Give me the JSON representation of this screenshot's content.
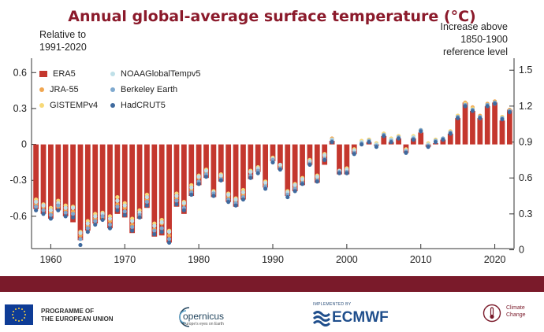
{
  "header": {
    "title": "Annual global-average surface temperature (°C)",
    "left_axis_label_line1": "Relative to",
    "left_axis_label_line2": "1991-2020",
    "right_axis_label_line1": "Increase above",
    "right_axis_label_line2": "1850-1900",
    "right_axis_label_line3": "reference level"
  },
  "legend": [
    {
      "label": "ERA5",
      "kind": "bar",
      "color": "#c4372e"
    },
    {
      "label": "JRA-55",
      "kind": "dot",
      "color": "#f0a650"
    },
    {
      "label": "GISTEMPv4",
      "kind": "dot",
      "color": "#f7d978"
    },
    {
      "label": "NOAAGlobalTempv5",
      "kind": "dot",
      "color": "#bfe0e8"
    },
    {
      "label": "Berkeley Earth",
      "kind": "dot",
      "color": "#7fa9cf"
    },
    {
      "label": "HadCRUT5",
      "kind": "dot",
      "color": "#3f6a9e"
    }
  ],
  "footer": {
    "eu_line1": "PROGRAMME OF",
    "eu_line2": "THE EUROPEAN UNION",
    "copernicus": "opernicus",
    "copernicus_sub": "Europe's eyes on Earth",
    "ecmwf_small": "IMPLEMENTED BY",
    "ecmwf": "ECMWF",
    "c3s_line1": "Climate",
    "c3s_line2": "Change"
  },
  "chart_data": {
    "type": "bar",
    "title": "Annual global-average surface temperature (°C)",
    "ylabel": "Relative to 1991-2020",
    "y2label": "Increase above 1850-1900 reference level",
    "ylim": [
      -0.87,
      0.72
    ],
    "y_ticks": [
      -0.6,
      -0.3,
      0,
      0.3,
      0.6
    ],
    "y_tick_labels": [
      "-0.6",
      "-0.3",
      "0",
      "0.3",
      "0.6"
    ],
    "y2_offset": 0.88,
    "y2_ticks": [
      0,
      0.3,
      0.6,
      0.9,
      1.2,
      1.5
    ],
    "y2_tick_labels": [
      "0",
      "0.3",
      "0.6",
      "0.9",
      "1.2",
      "1.5"
    ],
    "x_ticks": [
      1960,
      1970,
      1980,
      1990,
      2000,
      2010,
      2020
    ],
    "x_tick_labels": [
      "1960",
      "1970",
      "1980",
      "1990",
      "2000",
      "2010",
      "2020"
    ],
    "xlim": [
      1957.4,
      2022.6
    ],
    "categories": [
      1958,
      1959,
      1960,
      1961,
      1962,
      1963,
      1964,
      1965,
      1966,
      1967,
      1968,
      1969,
      1970,
      1971,
      1972,
      1973,
      1974,
      1975,
      1976,
      1977,
      1978,
      1979,
      1980,
      1981,
      1982,
      1983,
      1984,
      1985,
      1986,
      1987,
      1988,
      1989,
      1990,
      1991,
      1992,
      1993,
      1994,
      1995,
      1996,
      1997,
      1998,
      1999,
      2000,
      2001,
      2002,
      2003,
      2004,
      2005,
      2006,
      2007,
      2008,
      2009,
      2010,
      2011,
      2012,
      2013,
      2014,
      2015,
      2016,
      2017,
      2018,
      2019,
      2020,
      2021,
      2022
    ],
    "series": [
      {
        "name": "ERA5",
        "kind": "bar",
        "values": [
          -0.54,
          -0.58,
          -0.62,
          -0.55,
          -0.6,
          -0.65,
          -0.8,
          -0.72,
          -0.66,
          -0.63,
          -0.7,
          -0.58,
          -0.61,
          -0.74,
          -0.62,
          -0.53,
          -0.77,
          -0.76,
          -0.82,
          -0.52,
          -0.58,
          -0.43,
          -0.34,
          -0.28,
          -0.44,
          -0.31,
          -0.48,
          -0.52,
          -0.46,
          -0.29,
          -0.23,
          -0.36,
          -0.14,
          -0.21,
          -0.43,
          -0.39,
          -0.34,
          -0.17,
          -0.32,
          -0.17,
          0.03,
          -0.25,
          -0.25,
          -0.08,
          0.0,
          0.02,
          -0.01,
          0.07,
          0.02,
          0.05,
          -0.07,
          0.05,
          0.1,
          -0.02,
          0.01,
          0.04,
          0.09,
          0.22,
          0.35,
          0.28,
          0.22,
          0.32,
          0.35,
          0.2,
          0.29
        ]
      },
      {
        "name": "JRA-55",
        "kind": "dot",
        "values": [
          -0.5,
          -0.52,
          -0.57,
          -0.52,
          -0.55,
          -0.56,
          -0.76,
          -0.68,
          -0.62,
          -0.61,
          -0.64,
          -0.5,
          -0.53,
          -0.67,
          -0.6,
          -0.46,
          -0.71,
          -0.66,
          -0.76,
          -0.45,
          -0.5,
          -0.38,
          -0.28,
          -0.24,
          -0.42,
          -0.27,
          -0.44,
          -0.47,
          -0.42,
          -0.23,
          -0.21,
          -0.34,
          -0.12,
          -0.18,
          -0.41,
          -0.36,
          -0.3,
          -0.15,
          -0.28,
          -0.1,
          0.05,
          -0.23,
          -0.21,
          -0.05,
          0.02,
          0.04,
          0.01,
          0.09,
          0.04,
          0.07,
          -0.05,
          0.06,
          0.12,
          0.0,
          0.03,
          0.05,
          0.11,
          0.24,
          0.35,
          0.31,
          0.24,
          0.34,
          0.36,
          0.23,
          0.29
        ]
      },
      {
        "name": "GISTEMPv4",
        "kind": "dot",
        "values": [
          -0.46,
          -0.5,
          -0.53,
          -0.47,
          -0.51,
          -0.52,
          -0.73,
          -0.64,
          -0.58,
          -0.57,
          -0.6,
          -0.44,
          -0.49,
          -0.62,
          -0.55,
          -0.42,
          -0.66,
          -0.63,
          -0.72,
          -0.41,
          -0.48,
          -0.34,
          -0.26,
          -0.21,
          -0.39,
          -0.25,
          -0.41,
          -0.45,
          -0.38,
          -0.22,
          -0.19,
          -0.31,
          -0.11,
          -0.17,
          -0.39,
          -0.33,
          -0.28,
          -0.13,
          -0.26,
          -0.08,
          0.04,
          -0.22,
          -0.2,
          -0.04,
          0.03,
          0.04,
          0.01,
          0.09,
          0.05,
          0.07,
          -0.04,
          0.07,
          0.12,
          0.01,
          0.04,
          0.05,
          0.11,
          0.24,
          0.34,
          0.3,
          0.23,
          0.33,
          0.35,
          0.23,
          0.28
        ]
      },
      {
        "name": "NOAAGlobalTempv5",
        "kind": "dot",
        "values": [
          -0.48,
          -0.51,
          -0.55,
          -0.49,
          -0.53,
          -0.53,
          -0.74,
          -0.66,
          -0.6,
          -0.58,
          -0.62,
          -0.47,
          -0.51,
          -0.64,
          -0.57,
          -0.44,
          -0.68,
          -0.65,
          -0.73,
          -0.43,
          -0.49,
          -0.36,
          -0.27,
          -0.22,
          -0.4,
          -0.26,
          -0.42,
          -0.46,
          -0.4,
          -0.23,
          -0.2,
          -0.32,
          -0.12,
          -0.17,
          -0.4,
          -0.34,
          -0.29,
          -0.14,
          -0.27,
          -0.09,
          0.04,
          -0.22,
          -0.21,
          -0.05,
          0.02,
          0.03,
          0.0,
          0.08,
          0.04,
          0.06,
          -0.05,
          0.06,
          0.11,
          0.0,
          0.03,
          0.05,
          0.1,
          0.23,
          0.33,
          0.29,
          0.22,
          0.32,
          0.34,
          0.22,
          0.28
        ]
      },
      {
        "name": "Berkeley Earth",
        "kind": "dot",
        "values": [
          -0.52,
          -0.55,
          -0.59,
          -0.51,
          -0.57,
          -0.58,
          -0.79,
          -0.7,
          -0.64,
          -0.6,
          -0.67,
          -0.52,
          -0.56,
          -0.69,
          -0.59,
          -0.48,
          -0.72,
          -0.7,
          -0.79,
          -0.47,
          -0.53,
          -0.4,
          -0.31,
          -0.25,
          -0.41,
          -0.29,
          -0.46,
          -0.49,
          -0.44,
          -0.26,
          -0.22,
          -0.35,
          -0.13,
          -0.2,
          -0.42,
          -0.37,
          -0.32,
          -0.16,
          -0.3,
          -0.12,
          0.03,
          -0.23,
          -0.23,
          -0.07,
          0.01,
          0.03,
          -0.01,
          0.08,
          0.03,
          0.06,
          -0.06,
          0.05,
          0.12,
          -0.01,
          0.03,
          0.05,
          0.1,
          0.23,
          0.33,
          0.29,
          0.23,
          0.33,
          0.35,
          0.22,
          0.28
        ]
      },
      {
        "name": "HadCRUT5",
        "kind": "dot",
        "values": [
          -0.55,
          -0.58,
          -0.62,
          -0.55,
          -0.6,
          -0.61,
          -0.84,
          -0.73,
          -0.67,
          -0.63,
          -0.7,
          -0.55,
          -0.59,
          -0.72,
          -0.61,
          -0.51,
          -0.75,
          -0.73,
          -0.82,
          -0.5,
          -0.55,
          -0.42,
          -0.33,
          -0.27,
          -0.43,
          -0.3,
          -0.48,
          -0.51,
          -0.46,
          -0.28,
          -0.24,
          -0.37,
          -0.15,
          -0.21,
          -0.44,
          -0.39,
          -0.33,
          -0.17,
          -0.31,
          -0.13,
          0.02,
          -0.24,
          -0.24,
          -0.08,
          0.0,
          0.02,
          -0.02,
          0.07,
          0.02,
          0.05,
          -0.07,
          0.04,
          0.11,
          -0.02,
          0.02,
          0.04,
          0.09,
          0.22,
          0.32,
          0.28,
          0.22,
          0.32,
          0.34,
          0.21,
          0.27
        ]
      }
    ]
  }
}
